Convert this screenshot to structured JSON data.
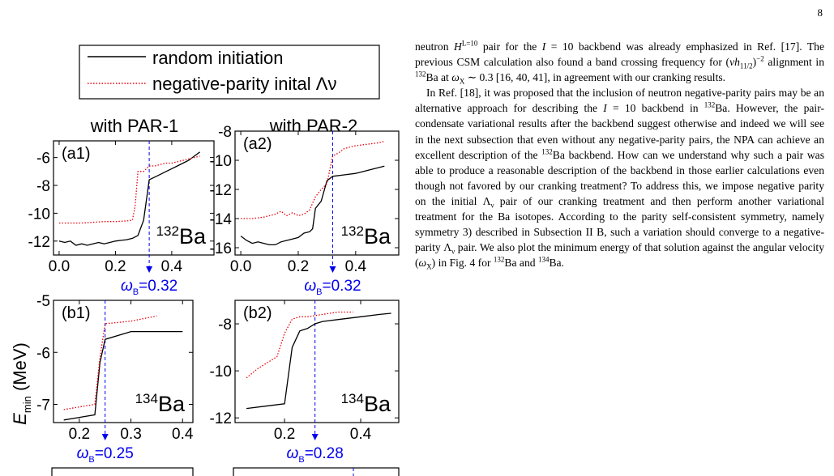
{
  "page": {
    "number": "8"
  },
  "figure": {
    "legend": {
      "items": [
        {
          "label": "random initiation",
          "color": "#000000",
          "style": "solid"
        },
        {
          "label": "negative-parity inital Λν",
          "color": "#e8000b",
          "style": "dotted"
        }
      ]
    },
    "col_titles": [
      "with PAR-1",
      "with PAR-2"
    ],
    "ylabel": "E_min (MeV)",
    "marker_color": "#0000ee",
    "panels": [
      {
        "id": "a1",
        "tag": "(a1)",
        "nucleus_mass": "132",
        "nucleus_symbol": "Ba",
        "xlim": [
          -0.02,
          0.55
        ],
        "ylim": [
          -13,
          -4.8
        ],
        "xticks": [
          0.0,
          0.2,
          0.4
        ],
        "xticklabels": [
          "0.0",
          "0.2",
          "0.4"
        ],
        "yticks": [
          -12,
          -10,
          -8,
          -6
        ],
        "yticklabels": [
          "-12",
          "-10",
          "-8",
          "-6"
        ],
        "marker": {
          "x": 0.32,
          "label": "=0.32"
        },
        "series": [
          {
            "name": "random initiation",
            "x": [
              0.0,
              0.02,
              0.04,
              0.06,
              0.08,
              0.1,
              0.12,
              0.14,
              0.16,
              0.18,
              0.2,
              0.22,
              0.24,
              0.26,
              0.28,
              0.3,
              0.32,
              0.34,
              0.36,
              0.38,
              0.4,
              0.42,
              0.44,
              0.46,
              0.48,
              0.5
            ],
            "y": [
              -12.0,
              -12.1,
              -12.0,
              -12.3,
              -12.2,
              -12.3,
              -12.2,
              -12.1,
              -12.2,
              -12.1,
              -12.0,
              -11.95,
              -11.9,
              -11.8,
              -11.6,
              -10.5,
              -7.6,
              -7.4,
              -7.2,
              -7.0,
              -6.8,
              -6.6,
              -6.4,
              -6.2,
              -5.9,
              -5.6
            ]
          },
          {
            "name": "negative-parity inital Λν",
            "x": [
              0.0,
              0.04,
              0.08,
              0.12,
              0.16,
              0.2,
              0.24,
              0.26,
              0.27,
              0.28,
              0.3,
              0.32,
              0.34,
              0.36,
              0.38,
              0.4,
              0.44,
              0.48,
              0.5
            ],
            "y": [
              -10.7,
              -10.7,
              -10.7,
              -10.65,
              -10.6,
              -10.6,
              -10.55,
              -10.5,
              -9.5,
              -7.0,
              -7.0,
              -6.6,
              -6.6,
              -6.5,
              -6.4,
              -6.4,
              -6.2,
              -6.0,
              -5.9
            ]
          }
        ]
      },
      {
        "id": "a2",
        "tag": "(a2)",
        "nucleus_mass": "132",
        "nucleus_symbol": "Ba",
        "xlim": [
          -0.02,
          0.55
        ],
        "ylim": [
          -16.5,
          -8
        ],
        "xticks": [
          0.0,
          0.2,
          0.4
        ],
        "xticklabels": [
          "0.0",
          "0.2",
          "0.4"
        ],
        "yticks": [
          -16,
          -14,
          -12,
          -10,
          -8
        ],
        "yticklabels": [
          "-16",
          "-14",
          "-12",
          "-10",
          "-8"
        ],
        "marker": {
          "x": 0.32,
          "label": "=0.32"
        },
        "series": [
          {
            "name": "random initiation",
            "x": [
              0.0,
              0.02,
              0.04,
              0.06,
              0.08,
              0.1,
              0.12,
              0.14,
              0.16,
              0.18,
              0.2,
              0.22,
              0.24,
              0.25,
              0.26,
              0.28,
              0.3,
              0.32,
              0.36,
              0.4,
              0.44,
              0.48,
              0.5
            ],
            "y": [
              -15.2,
              -15.5,
              -15.7,
              -15.6,
              -15.7,
              -15.8,
              -15.8,
              -15.6,
              -15.5,
              -15.4,
              -15.3,
              -15.0,
              -14.9,
              -14.7,
              -13.3,
              -12.8,
              -11.4,
              -11.1,
              -11.0,
              -10.9,
              -10.7,
              -10.5,
              -10.4
            ]
          },
          {
            "name": "negative-parity inital Λν",
            "x": [
              0.0,
              0.04,
              0.08,
              0.12,
              0.14,
              0.16,
              0.18,
              0.2,
              0.22,
              0.24,
              0.26,
              0.28,
              0.3,
              0.32,
              0.34,
              0.36,
              0.4,
              0.44,
              0.48,
              0.5
            ],
            "y": [
              -14.0,
              -14.0,
              -13.9,
              -13.7,
              -13.5,
              -13.8,
              -13.6,
              -13.8,
              -13.7,
              -13.4,
              -12.5,
              -12.0,
              -11.6,
              -9.7,
              -9.5,
              -9.2,
              -9.0,
              -8.9,
              -8.8,
              -8.7
            ]
          }
        ]
      },
      {
        "id": "b1",
        "tag": "(b1)",
        "nucleus_mass": "134",
        "nucleus_symbol": "Ba",
        "xlim": [
          0.15,
          0.42
        ],
        "ylim": [
          -7.35,
          -5.0
        ],
        "xticks": [
          0.2,
          0.3,
          0.4
        ],
        "xticklabels": [
          "0.2",
          "0.3",
          "0.4"
        ],
        "yticks": [
          -7,
          -6,
          -5
        ],
        "yticklabels": [
          "-7",
          "-6",
          "-5"
        ],
        "marker": {
          "x": 0.25,
          "label": "=0.25"
        },
        "series": [
          {
            "name": "random initiation",
            "x": [
              0.17,
              0.2,
              0.23,
              0.24,
              0.25,
              0.3,
              0.35,
              0.4
            ],
            "y": [
              -7.3,
              -7.25,
              -7.2,
              -6.2,
              -5.75,
              -5.6,
              -5.6,
              -5.6
            ]
          },
          {
            "name": "negative-parity inital Λν",
            "x": [
              0.17,
              0.2,
              0.23,
              0.24,
              0.25,
              0.3,
              0.35
            ],
            "y": [
              -7.1,
              -7.05,
              -7.0,
              -6.1,
              -5.45,
              -5.4,
              -5.3
            ]
          }
        ]
      },
      {
        "id": "b2",
        "tag": "(b2)",
        "nucleus_mass": "134",
        "nucleus_symbol": "Ba",
        "xlim": [
          0.07,
          0.5
        ],
        "ylim": [
          -12.2,
          -7.0
        ],
        "xticks": [
          0.2,
          0.4
        ],
        "xticklabels": [
          "0.2",
          "0.4"
        ],
        "yticks": [
          -12,
          -10,
          -8
        ],
        "yticklabels": [
          "-12",
          "-10",
          "-8"
        ],
        "marker": {
          "x": 0.28,
          "label": "=0.28"
        },
        "series": [
          {
            "name": "random initiation",
            "x": [
              0.1,
              0.15,
              0.2,
              0.22,
              0.24,
              0.26,
              0.28,
              0.3,
              0.35,
              0.4,
              0.45,
              0.48
            ],
            "y": [
              -11.6,
              -11.5,
              -11.4,
              -9.0,
              -8.3,
              -8.2,
              -8.0,
              -7.9,
              -7.8,
              -7.7,
              -7.6,
              -7.55
            ]
          },
          {
            "name": "negative-parity inital Λν",
            "x": [
              0.1,
              0.13,
              0.16,
              0.18,
              0.2,
              0.22,
              0.24,
              0.26,
              0.3,
              0.34,
              0.38
            ],
            "y": [
              -10.3,
              -9.9,
              -9.6,
              -9.4,
              -8.4,
              -7.8,
              -7.7,
              -7.7,
              -7.6,
              -7.5,
              -7.5
            ]
          }
        ]
      }
    ]
  },
  "text": {
    "p1": {
      "s1": "neutron ",
      "H": "H",
      "Hsup": "L=10",
      "s2": " pair for the ",
      "I1": "I",
      "s3": " = 10 backbend was already emphasized in Ref. [17]. The previous CSM calculation also found a band crossing frequency for (",
      "nu": "ν",
      "h": "h",
      "hsub": "11/2",
      "s4": ")",
      "s4sup": "−2",
      "s5": " alignment in ",
      "mass": "132",
      "s6": "Ba at ",
      "omega": "ω",
      "omegasub": "X",
      "s7": " ∼ 0.3 [16, 40, 41], in agreement with our cranking results."
    },
    "p2": {
      "s1": "In Ref. [18], it was proposed that the inclusion of neutron negative-parity pairs may be an alternative approach for describing the ",
      "I": "I",
      "s2": " = 10 backbend in ",
      "m1": "132",
      "s3": "Ba. However, the pair-condensate variational results after the backbend suggest otherwise and indeed we will see in the next subsection that even without any negative-parity pairs, the NPA can achieve an excellent description of the ",
      "m2": "132",
      "s4": "Ba backbend. How can we understand why such a pair was able to produce a reasonable description of the backbend in those earlier calculations even though not favored by our cranking treatment? To address this, we impose negative parity on the initial ",
      "L1": "Λ",
      "L1sub": "ν",
      "s5": " pair of our cranking treatment and then perform another variational treatment for the Ba isotopes. According to the parity self-consistent symmetry, namely symmetry 3) described in Subsection II B, such a variation should converge to a negative-parity ",
      "L2": "Λ",
      "L2sub": "ν",
      "s6": " pair. We also plot the minimum energy of that solution against the angular velocity (",
      "om": "ω",
      "omsub": "X",
      "s7": ") in",
      "s8": "Fig. 4 for ",
      "m3": "132",
      "s9": "Ba and ",
      "m4": "134",
      "s10": "Ba."
    }
  }
}
